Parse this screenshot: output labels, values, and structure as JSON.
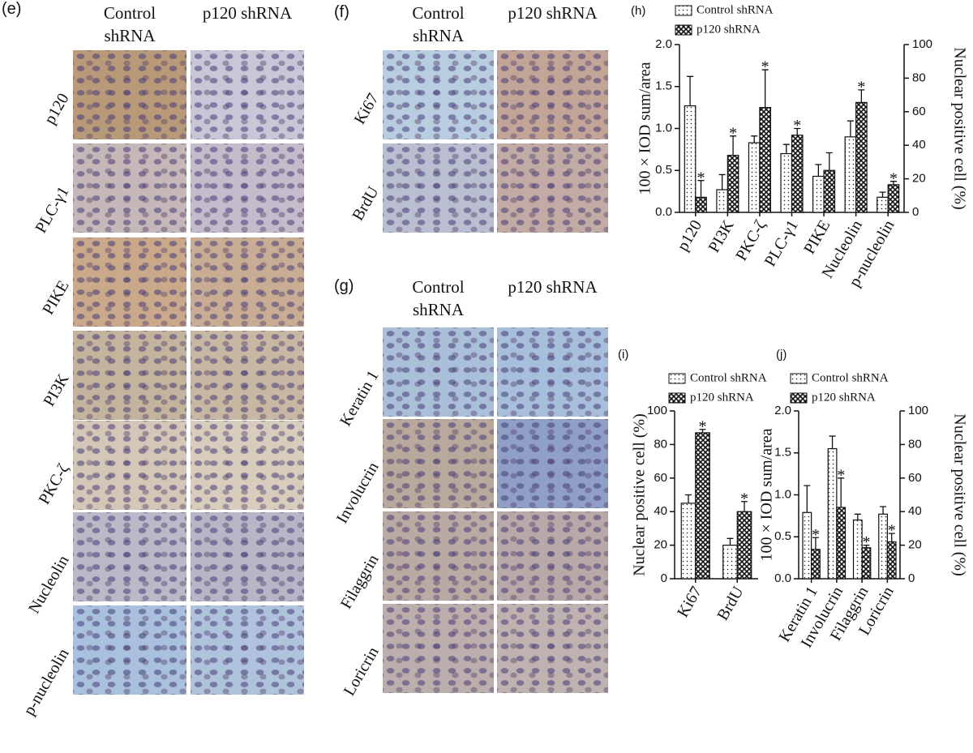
{
  "panels": [
    {
      "label": "(e)",
      "columns": [
        "Control shRNA",
        "p120 shRNA"
      ],
      "rows": [
        "p120",
        "PLC-γ1",
        "PIKE",
        "PI3K",
        "PKC-ζ",
        "Nucleolin",
        "p-nucleolin"
      ]
    },
    {
      "label": "(f)",
      "columns": [
        "Control shRNA",
        "p120 shRNA"
      ],
      "rows": [
        "Ki67",
        "BrdU"
      ]
    },
    {
      "label": "(g)",
      "columns": [
        "Control shRNA",
        "p120 shRNA"
      ],
      "rows": [
        "Keratin 1",
        "Involucrin",
        "Filaggrin",
        "Loricrin"
      ]
    }
  ],
  "chart_data": [
    {
      "type": "bar",
      "panel_label": "(h)",
      "categories": [
        "p120",
        "PI3K",
        "PKC-ζ",
        "PLC-γ1",
        "PIKE",
        "Nucleolin",
        "p-nucleolin"
      ],
      "series": [
        {
          "name": "Control shRNA",
          "pattern": "dots",
          "values": [
            1.27,
            0.27,
            0.83,
            0.7,
            0.43,
            0.9,
            0.18
          ],
          "errors": [
            0.35,
            0.18,
            0.08,
            0.11,
            0.14,
            0.19,
            0.06
          ]
        },
        {
          "name": "p120 shRNA",
          "pattern": "crosshatch",
          "values": [
            0.18,
            0.68,
            1.25,
            0.92,
            0.5,
            1.31,
            0.33
          ],
          "errors": [
            0.2,
            0.23,
            0.45,
            0.08,
            0.21,
            0.15,
            0.04
          ],
          "significance": [
            "*",
            "*",
            "*",
            "*",
            null,
            "*",
            "*"
          ]
        }
      ],
      "ylabel": "100 × IOD sum/area",
      "ylim": [
        0,
        2
      ],
      "yticks": [
        {
          "value": 0,
          "label": "0.0"
        },
        0.5,
        {
          "value": 1,
          "label": "1.0"
        },
        1.5,
        {
          "value": 2,
          "label": "2.0"
        }
      ],
      "y2label": "Nuclear positive cell (%)",
      "y2lim": [
        0,
        100
      ],
      "y2ticks": [
        0,
        20,
        40,
        60,
        80,
        100
      ]
    },
    {
      "type": "bar",
      "panel_label": "(i)",
      "categories": [
        "Ki67",
        "BrdU"
      ],
      "series": [
        {
          "name": "Control shRNA",
          "pattern": "dots",
          "values": [
            45,
            20
          ],
          "errors": [
            5,
            4
          ]
        },
        {
          "name": "p120 shRNA",
          "pattern": "crosshatch",
          "values": [
            87,
            40
          ],
          "errors": [
            2,
            6
          ],
          "significance": [
            "*",
            "*"
          ]
        }
      ],
      "ylabel": "Nuclear positive cell (%)",
      "ylim": [
        0,
        100
      ],
      "yticks": [
        0,
        20,
        40,
        60,
        80,
        100
      ]
    },
    {
      "type": "bar",
      "panel_label": "(j)",
      "categories": [
        "Keratin 1",
        "Involucrin",
        "Filaggrin",
        "Loricrin"
      ],
      "series": [
        {
          "name": "Control shRNA",
          "pattern": "dots",
          "values": [
            0.79,
            1.55,
            0.7,
            0.77
          ],
          "errors": [
            0.32,
            0.15,
            0.07,
            0.09
          ]
        },
        {
          "name": "p120 shRNA",
          "pattern": "crosshatch",
          "values": [
            0.35,
            0.85,
            0.37,
            0.44
          ],
          "errors": [
            0.14,
            0.35,
            0.03,
            0.1
          ],
          "significance": [
            "*",
            "*",
            "*",
            "*"
          ]
        }
      ],
      "ylabel": "100 × IOD sum/area",
      "ylim": [
        0,
        2
      ],
      "yticks": [
        {
          "value": 0,
          "label": "0.0"
        },
        0.5,
        {
          "value": 1,
          "label": "1.0"
        },
        1.5,
        {
          "value": 2,
          "label": "2.0"
        }
      ],
      "y2label": "Nuclear positive cell (%)",
      "y2lim": [
        0,
        100
      ],
      "y2ticks": [
        0,
        20,
        40,
        60,
        80,
        100
      ]
    }
  ]
}
